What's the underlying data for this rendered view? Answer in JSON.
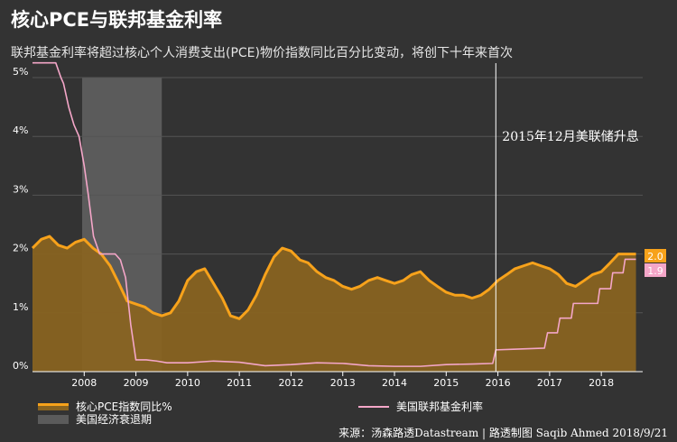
{
  "title": "核心PCE与联邦基金利率",
  "subtitle": "联邦基金利率将超过核心个人消费支出(PCE)物价指数同比百分比变动，将创下十年来首次",
  "source": "来源：汤森路透Datastream | 路透制图 Saqib Ahmed 2018/9/21",
  "legend": {
    "pce": "核心PCE指数同比%",
    "recession": "美国经济衰退期",
    "ffr": "美国联邦基金利率"
  },
  "colors": {
    "background": "#333333",
    "pce_line": "#f7a21b",
    "pce_fill": "#8a6420",
    "ffr_line": "#f4a6c8",
    "recession": "#5b5b5b",
    "annotation_line": "#ffffff",
    "end_label_pce": "#f7a21b",
    "end_label_ffr": "#f4a6c8"
  },
  "chart_data": {
    "type": "area",
    "xlim": [
      2007.0,
      2018.8
    ],
    "ylim": [
      0,
      5
    ],
    "ytick_labels": [
      "0%",
      "1%",
      "2%",
      "3%",
      "4%",
      "5%"
    ],
    "ytick_values": [
      0,
      1,
      2,
      3,
      4,
      5
    ],
    "xtick_labels": [
      "2008",
      "2009",
      "2010",
      "2011",
      "2012",
      "2013",
      "2014",
      "2015",
      "2016",
      "2017",
      "2018"
    ],
    "xtick_values": [
      2008,
      2009,
      2010,
      2011,
      2012,
      2013,
      2014,
      2015,
      2016,
      2017,
      2018
    ],
    "grid": true,
    "recession": {
      "start": 2007.96,
      "end": 2009.5
    },
    "annotation": {
      "x": 2015.96,
      "text": "2015年12月美联储升息"
    },
    "end_labels": {
      "pce": "2.0",
      "ffr": "1.9"
    },
    "series": [
      {
        "name": "核心PCE指数同比%",
        "style": "area",
        "x": [
          2007.0,
          2007.17,
          2007.33,
          2007.5,
          2007.67,
          2007.83,
          2008.0,
          2008.17,
          2008.33,
          2008.5,
          2008.67,
          2008.83,
          2009.0,
          2009.17,
          2009.33,
          2009.5,
          2009.67,
          2009.83,
          2010.0,
          2010.17,
          2010.33,
          2010.5,
          2010.67,
          2010.83,
          2011.0,
          2011.17,
          2011.33,
          2011.5,
          2011.67,
          2011.83,
          2012.0,
          2012.17,
          2012.33,
          2012.5,
          2012.67,
          2012.83,
          2013.0,
          2013.17,
          2013.33,
          2013.5,
          2013.67,
          2013.83,
          2014.0,
          2014.17,
          2014.33,
          2014.5,
          2014.67,
          2014.83,
          2015.0,
          2015.17,
          2015.33,
          2015.5,
          2015.67,
          2015.83,
          2016.0,
          2016.17,
          2016.33,
          2016.5,
          2016.67,
          2016.83,
          2017.0,
          2017.17,
          2017.33,
          2017.5,
          2017.67,
          2017.83,
          2018.0,
          2018.17,
          2018.33,
          2018.5,
          2018.67
        ],
        "y": [
          2.1,
          2.25,
          2.3,
          2.15,
          2.1,
          2.2,
          2.25,
          2.1,
          2.0,
          1.8,
          1.5,
          1.2,
          1.15,
          1.1,
          1.0,
          0.95,
          1.0,
          1.2,
          1.55,
          1.7,
          1.75,
          1.5,
          1.25,
          0.95,
          0.9,
          1.05,
          1.3,
          1.65,
          1.95,
          2.1,
          2.05,
          1.9,
          1.85,
          1.7,
          1.6,
          1.55,
          1.45,
          1.4,
          1.45,
          1.55,
          1.6,
          1.55,
          1.5,
          1.55,
          1.65,
          1.7,
          1.55,
          1.45,
          1.35,
          1.3,
          1.3,
          1.25,
          1.3,
          1.4,
          1.55,
          1.65,
          1.75,
          1.8,
          1.85,
          1.8,
          1.75,
          1.65,
          1.5,
          1.45,
          1.55,
          1.65,
          1.7,
          1.85,
          2.0,
          2.0,
          2.0
        ]
      },
      {
        "name": "美国联邦基金利率",
        "style": "line",
        "x": [
          2007.0,
          2007.15,
          2007.3,
          2007.45,
          2007.55,
          2007.6,
          2007.7,
          2007.8,
          2007.9,
          2008.0,
          2008.08,
          2008.18,
          2008.3,
          2008.45,
          2008.6,
          2008.7,
          2008.8,
          2008.9,
          2009.0,
          2009.2,
          2009.4,
          2009.6,
          2010.0,
          2010.5,
          2011.0,
          2011.5,
          2012.0,
          2012.5,
          2013.0,
          2013.5,
          2014.0,
          2014.5,
          2015.0,
          2015.5,
          2015.9,
          2015.96,
          2016.3,
          2016.9,
          2016.96,
          2017.15,
          2017.2,
          2017.42,
          2017.46,
          2017.93,
          2017.97,
          2018.18,
          2018.22,
          2018.42,
          2018.46,
          2018.67
        ],
        "y": [
          5.25,
          5.25,
          5.25,
          5.25,
          5.0,
          4.9,
          4.5,
          4.2,
          4.0,
          3.5,
          3.0,
          2.3,
          2.0,
          2.0,
          2.0,
          1.9,
          1.6,
          0.8,
          0.2,
          0.2,
          0.18,
          0.15,
          0.15,
          0.18,
          0.16,
          0.1,
          0.12,
          0.15,
          0.14,
          0.1,
          0.09,
          0.09,
          0.12,
          0.13,
          0.14,
          0.37,
          0.38,
          0.4,
          0.66,
          0.66,
          0.91,
          0.91,
          1.16,
          1.16,
          1.41,
          1.41,
          1.68,
          1.68,
          1.91,
          1.91
        ]
      }
    ]
  }
}
